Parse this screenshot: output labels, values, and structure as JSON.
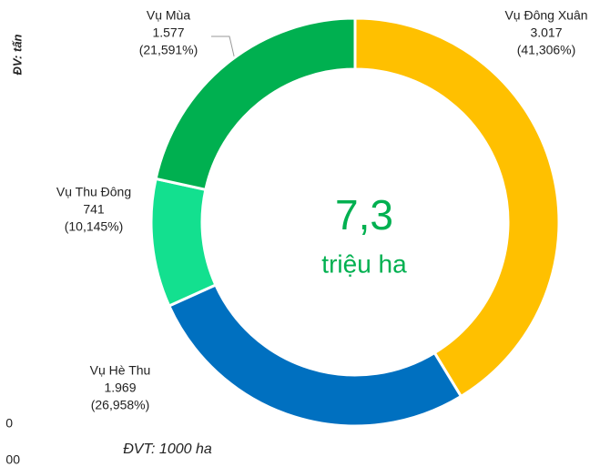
{
  "chart_data": {
    "type": "donut",
    "categories": [
      "Vụ Đông Xuân",
      "Vụ Hè Thu",
      "Vụ Thu Đông",
      "Vụ Mùa"
    ],
    "values": [
      3017,
      1969,
      741,
      1577
    ],
    "value_labels": [
      "3.017",
      "1.969",
      "741",
      "1.577"
    ],
    "percent_labels": [
      "(41,306%)",
      "(26,958%)",
      "(10,145%)",
      "(21,591%)"
    ],
    "colors": [
      "#FFC000",
      "#0070C0",
      "#13E08F",
      "#00B050"
    ],
    "center_value": "7,3",
    "center_unit": "triệu ha",
    "unit_note": "ĐVT: 1000 ha",
    "side_note": "ĐV: tấn",
    "fragments": [
      "0",
      "00"
    ]
  }
}
